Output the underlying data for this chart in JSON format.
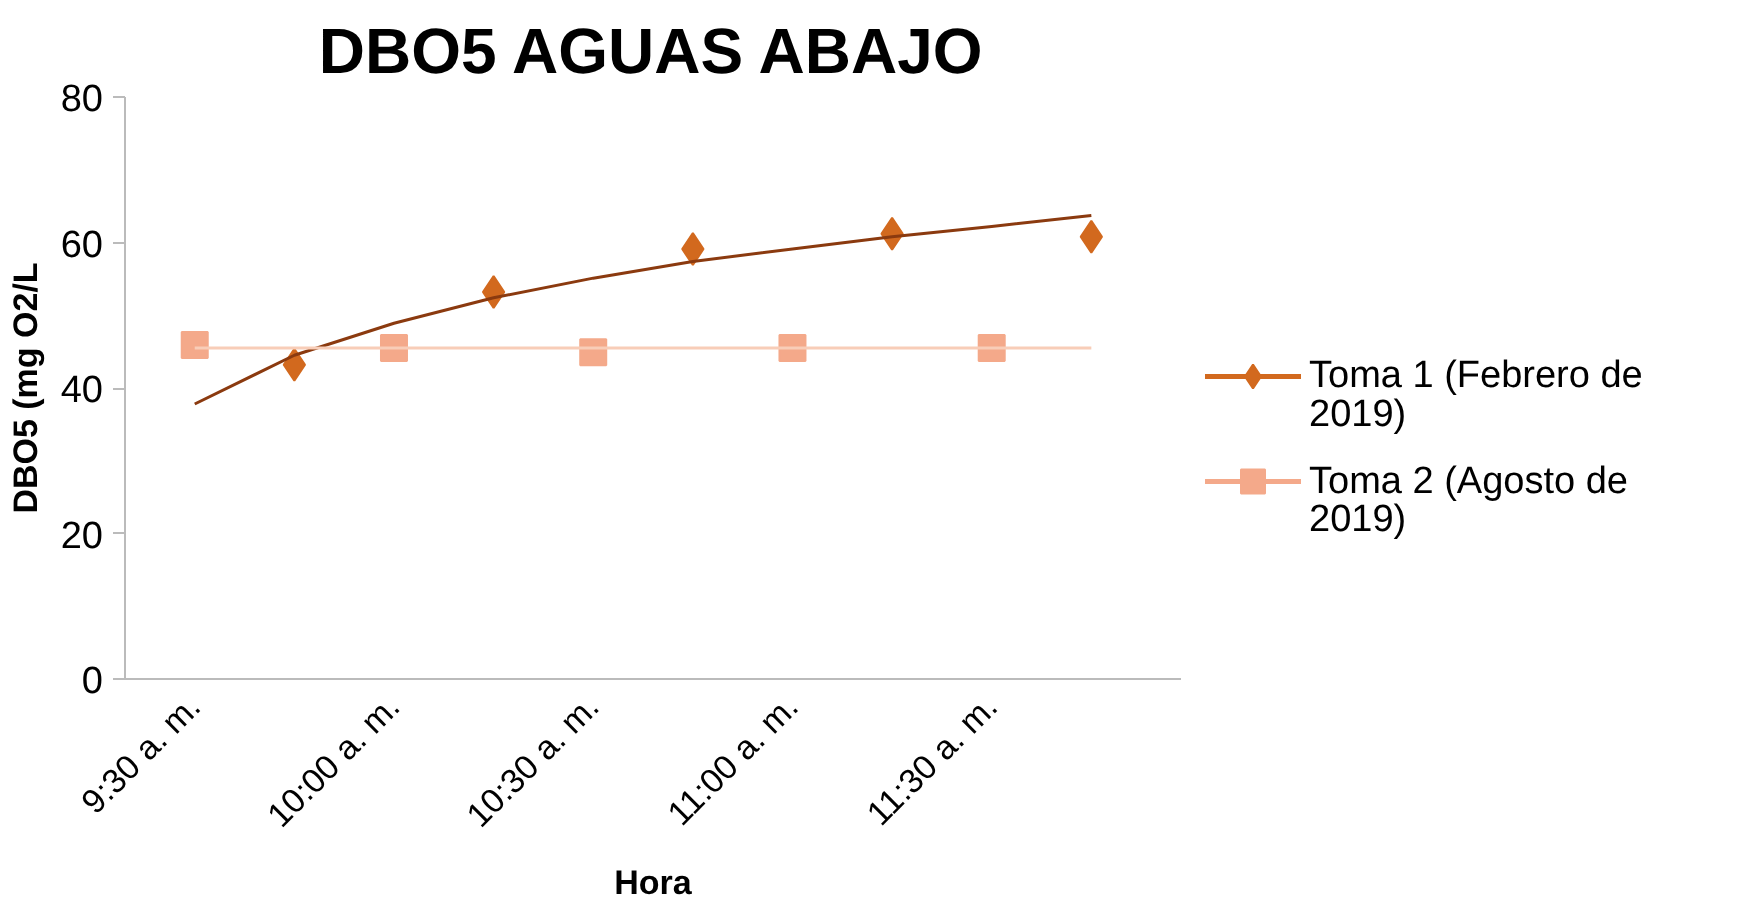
{
  "chart_data": {
    "type": "line",
    "title": "DBO5 AGUAS ABAJO",
    "xlabel": "Hora",
    "ylabel": "DBO5 (mg O2/L",
    "categories": [
      "9:30 a. m.",
      null,
      "10:00 a. m.",
      null,
      "10:30 a. m.",
      null,
      "11:00 a. m.",
      null,
      "11:30 a. m.",
      null
    ],
    "ylim": [
      0,
      80
    ],
    "yticks": [
      0,
      20,
      40,
      60,
      80
    ],
    "legend": "right",
    "series": [
      {
        "name": "Toma 1 (Febrero de 2019)",
        "type": "scatter",
        "color": "#d2691e",
        "marker": "diamond",
        "values": [
          null,
          43.2,
          null,
          53.2,
          null,
          59.1,
          null,
          61.2,
          null,
          60.8
        ]
      },
      {
        "name": "Toma 2 (Agosto de 2019)",
        "type": "scatter",
        "color": "#f4a98a",
        "marker": "square",
        "values": [
          45.9,
          null,
          45.5,
          null,
          44.9,
          null,
          45.5,
          null,
          45.5,
          null
        ]
      },
      {
        "color": "#8b3a0f",
        "values": [
          37.8,
          44.5,
          48.9,
          52.4,
          55.1,
          57.4,
          59.1,
          60.8,
          62.2,
          63.7
        ]
      },
      {
        "color": "#f8cdb8",
        "values": [
          45.5,
          45.5,
          45.5,
          45.5,
          45.5,
          45.5,
          45.5,
          45.5,
          45.5,
          45.5
        ]
      }
    ]
  }
}
